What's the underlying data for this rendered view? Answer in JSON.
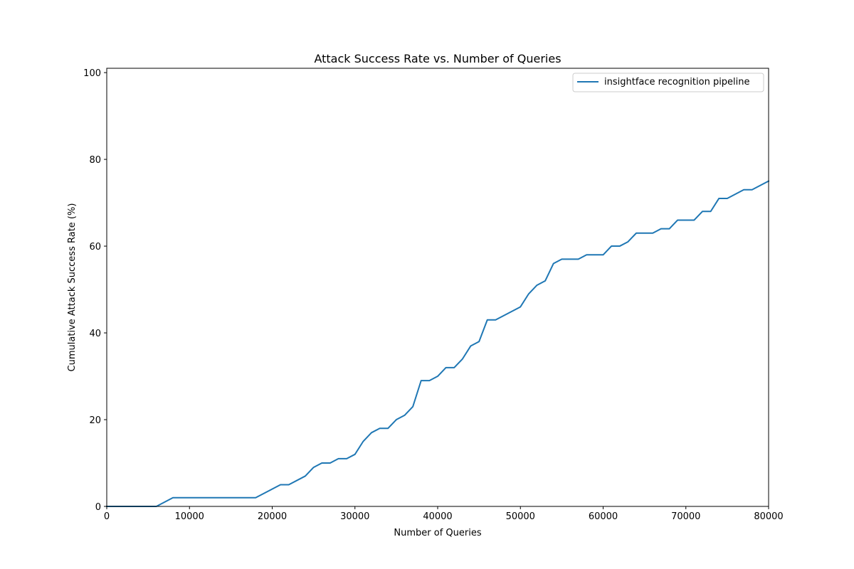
{
  "chart_data": {
    "type": "line",
    "title": "Attack Success Rate vs. Number of Queries",
    "xlabel": "Number of Queries",
    "ylabel": "Cumulative Attack Success Rate (%)",
    "xlim": [
      0,
      80000
    ],
    "ylim": [
      0,
      101
    ],
    "xticks": [
      0,
      10000,
      20000,
      30000,
      40000,
      50000,
      60000,
      70000,
      80000
    ],
    "yticks": [
      0,
      20,
      40,
      60,
      80,
      100
    ],
    "grid": false,
    "legend_position": "top-right",
    "series": [
      {
        "name": "insightface recognition pipeline",
        "color": "#1f77b4",
        "x": [
          0,
          6000,
          8000,
          18000,
          21000,
          22000,
          24000,
          25000,
          26000,
          27000,
          28000,
          29000,
          30000,
          31000,
          32000,
          33000,
          34000,
          35000,
          36000,
          37000,
          38000,
          39000,
          40000,
          41000,
          42000,
          43000,
          44000,
          45000,
          46000,
          47000,
          50000,
          51000,
          52000,
          53000,
          54000,
          55000,
          57000,
          58000,
          60000,
          61000,
          62000,
          63000,
          64000,
          66000,
          67000,
          68000,
          69000,
          71000,
          72000,
          73000,
          74000,
          75000,
          77000,
          78000,
          80000
        ],
        "y": [
          0,
          0,
          2,
          2,
          5,
          5,
          7,
          9,
          10,
          10,
          11,
          11,
          12,
          15,
          17,
          18,
          18,
          20,
          21,
          23,
          29,
          29,
          30,
          32,
          32,
          34,
          37,
          38,
          43,
          43,
          46,
          49,
          51,
          52,
          56,
          57,
          57,
          58,
          58,
          60,
          60,
          61,
          63,
          63,
          64,
          64,
          66,
          66,
          68,
          68,
          71,
          71,
          73,
          73,
          75
        ]
      }
    ]
  }
}
